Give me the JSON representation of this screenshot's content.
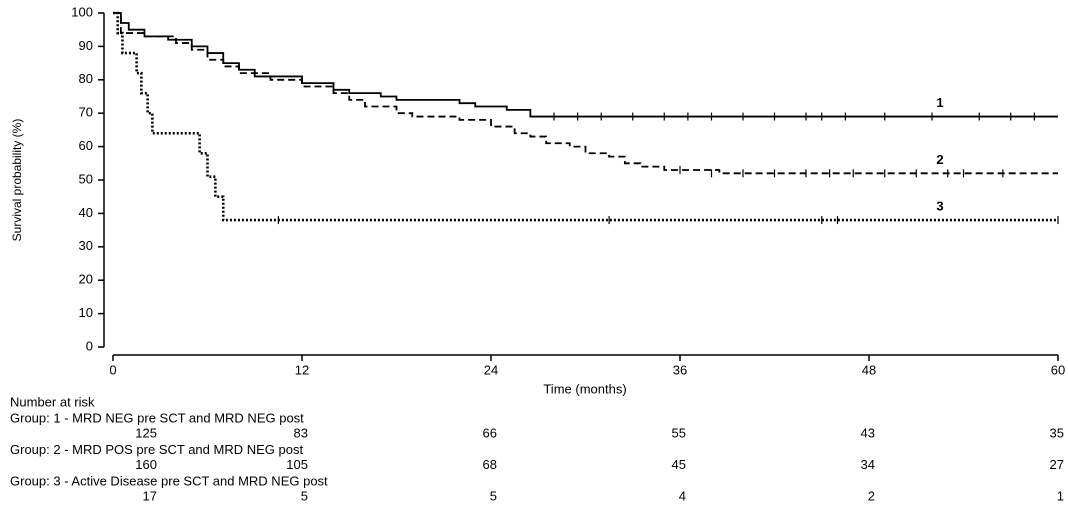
{
  "chart_data": {
    "type": "step",
    "x_label": "Time (months)",
    "y_label": "Survival probability (%)",
    "xlim": [
      0,
      60
    ],
    "ylim": [
      0,
      100
    ],
    "xticks": [
      0,
      12,
      24,
      36,
      48,
      60
    ],
    "yticks": [
      0,
      10,
      20,
      30,
      40,
      50,
      60,
      70,
      80,
      90,
      100
    ],
    "series": [
      {
        "name": "1",
        "color": "#000000",
        "line_style": "solid",
        "x": [
          0,
          0.5,
          1,
          2,
          3.5,
          5,
          6,
          7,
          8,
          9,
          12,
          14,
          15,
          17,
          18,
          22,
          23,
          25,
          26.5,
          60
        ],
        "values": [
          100,
          97,
          95,
          93,
          92,
          90,
          88,
          85,
          83,
          81,
          79,
          77,
          76,
          75,
          74,
          73,
          72,
          71,
          69,
          69
        ],
        "censored_x": [
          28,
          29.5,
          31,
          33,
          35,
          36.5,
          38,
          40,
          42,
          44,
          45,
          46.5,
          49,
          52,
          55,
          57,
          58.5
        ],
        "censored_y": [
          69,
          69,
          69,
          69,
          69,
          69,
          69,
          69,
          69,
          69,
          69,
          69,
          69,
          69,
          69,
          69,
          69
        ]
      },
      {
        "name": "2",
        "color": "#000000",
        "line_style": "dashed",
        "x": [
          0,
          0.5,
          2,
          4,
          5,
          6,
          7,
          8,
          10,
          12,
          14,
          15,
          16,
          18,
          19,
          22,
          24,
          25.5,
          26.5,
          27.5,
          29,
          30,
          31.5,
          32.5,
          33.5,
          35,
          38.5,
          60
        ],
        "values": [
          100,
          94,
          93,
          91,
          89,
          86,
          84,
          82,
          80,
          78,
          76,
          74,
          72,
          70,
          69,
          68,
          66,
          64,
          63,
          61,
          60,
          58,
          57,
          55,
          54,
          53,
          52,
          52
        ],
        "censored_x": [
          36,
          38,
          40,
          42,
          44,
          45.5,
          47,
          49,
          51,
          53,
          54,
          56.5
        ],
        "censored_y": [
          53,
          52,
          52,
          52,
          52,
          52,
          52,
          52,
          52,
          52,
          52,
          52
        ]
      },
      {
        "name": "3",
        "color": "#000000",
        "line_style": "dotted",
        "x": [
          0,
          0.3,
          0.6,
          1.5,
          1.8,
          2.2,
          2.5,
          5.5,
          6,
          6.5,
          7,
          60
        ],
        "values": [
          100,
          94,
          88,
          82,
          76,
          70,
          64,
          58,
          51,
          45,
          38,
          38
        ],
        "censored_x": [
          10.5,
          31.5,
          45,
          46,
          60
        ],
        "censored_y": [
          38,
          38,
          38,
          38,
          38
        ]
      }
    ],
    "risk_table": {
      "title": "Number at risk",
      "groups": [
        {
          "label": "Group: 1 - MRD NEG pre SCT and MRD NEG post",
          "counts": [
            125,
            83,
            66,
            55,
            43,
            35
          ]
        },
        {
          "label": "Group: 2 - MRD POS pre SCT and MRD NEG post",
          "counts": [
            160,
            105,
            68,
            45,
            34,
            27
          ]
        },
        {
          "label": "Group: 3 - Active Disease pre SCT and MRD NEG post",
          "counts": [
            17,
            5,
            5,
            4,
            2,
            1
          ]
        }
      ]
    }
  }
}
